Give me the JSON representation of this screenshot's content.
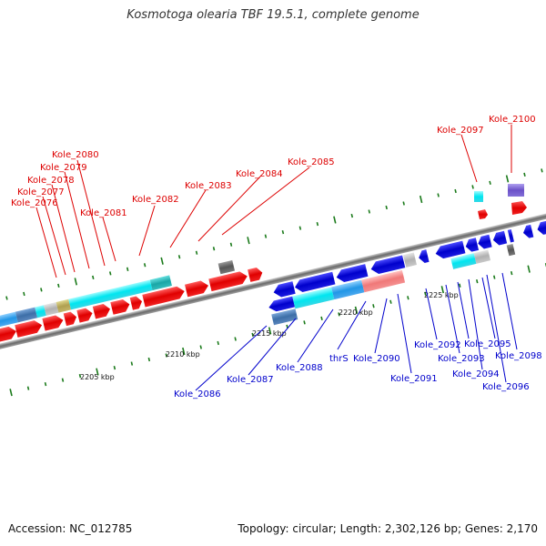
{
  "title": "Kosmotoga olearia TBF 19.5.1, complete genome",
  "accession": "Accession: NC_012785",
  "topology": "Topology: circular; Length: 2,302,126 bp; Genes: 2,170",
  "colors": {
    "forward_label": "#dd0000",
    "reverse_label": "#0000cc",
    "backbone": "#777777",
    "tick": "#1a7a1a"
  },
  "kbp_labels": [
    "2205 kbp",
    "2210 kbp",
    "2215 kbp",
    "2220 kbp",
    "2225 kbp"
  ],
  "forward_labels": [
    "Kole_2076",
    "Kole_2077",
    "Kole_2078",
    "Kole_2079",
    "Kole_2080",
    "Kole_2081",
    "Kole_2082",
    "Kole_2083",
    "Kole_2084",
    "Kole_2085",
    "Kole_2097",
    "Kole_2100"
  ],
  "reverse_labels": [
    "Kole_2086",
    "Kole_2087",
    "Kole_2088",
    "thrS",
    "Kole_2090",
    "Kole_2091",
    "Kole_2092",
    "Kole_2093",
    "Kole_2094",
    "Kole_2095",
    "Kole_2096",
    "Kole_2098"
  ]
}
